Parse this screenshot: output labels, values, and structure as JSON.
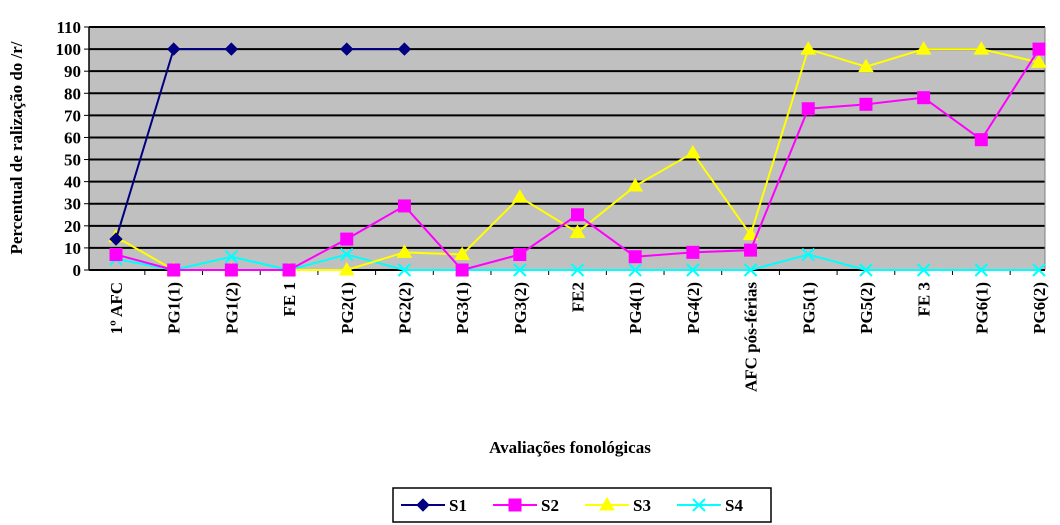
{
  "chart_data": {
    "type": "line",
    "xlabel": "Avaliações fonológicas",
    "ylabel": "Percentual de ralização do /r/",
    "ylim": [
      0,
      110
    ],
    "yticks": [
      0,
      10,
      20,
      30,
      40,
      50,
      60,
      70,
      80,
      90,
      100,
      110
    ],
    "grid": "horizontal",
    "legend_position": "bottom",
    "plot_background": "#c0c0c0",
    "categories": [
      "1º AFC",
      "PG1(1)",
      "PG1(2)",
      "FE 1",
      "PG2(1)",
      "PG2(2)",
      "PG3(1)",
      "PG3(2)",
      "FE2",
      "PG4(1)",
      "PG4(2)",
      "AFC pós-férias",
      "PG5(1)",
      "PG5(2)",
      "FE 3",
      "PG6(1)",
      "PG6(2)"
    ],
    "series": [
      {
        "name": "S1",
        "color": "#000080",
        "marker": "diamond",
        "values": [
          14,
          100,
          100,
          null,
          100,
          100,
          null,
          null,
          null,
          null,
          null,
          null,
          null,
          null,
          null,
          null,
          null
        ]
      },
      {
        "name": "S2",
        "color": "#ff00ff",
        "marker": "square",
        "values": [
          7,
          0,
          0,
          0,
          14,
          29,
          0,
          7,
          25,
          6,
          8,
          9,
          73,
          75,
          78,
          59,
          100
        ]
      },
      {
        "name": "S3",
        "color": "#ffff00",
        "marker": "triangle",
        "values": [
          15,
          0,
          0,
          0,
          0,
          8,
          7,
          33,
          17,
          38,
          53,
          16,
          100,
          92,
          100,
          100,
          94
        ]
      },
      {
        "name": "S4",
        "color": "#00ffff",
        "marker": "x",
        "values": [
          5,
          0,
          6,
          0,
          7,
          0,
          0,
          0,
          0,
          0,
          0,
          0,
          7,
          0,
          0,
          0,
          0
        ]
      }
    ]
  }
}
